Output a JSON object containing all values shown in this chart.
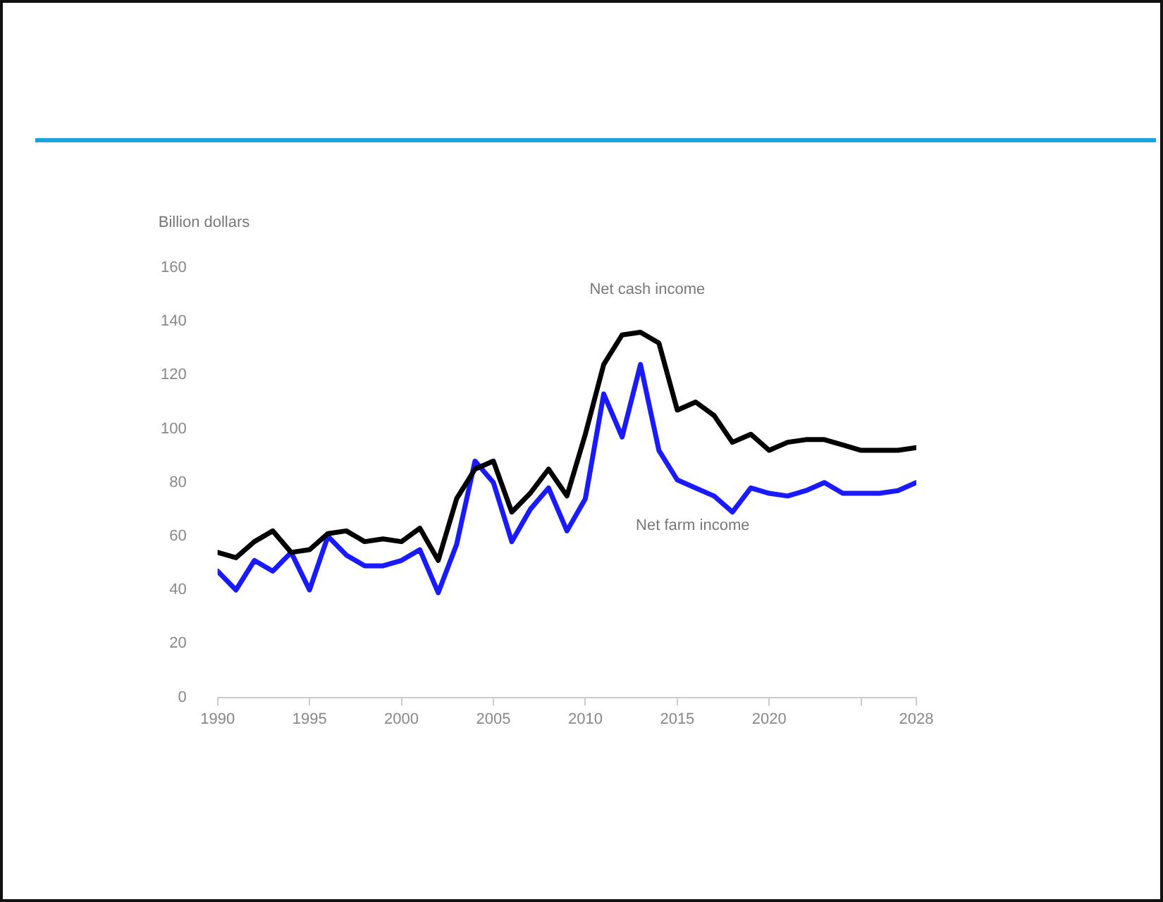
{
  "chart_data": {
    "type": "line",
    "ylabel": "Billion dollars",
    "x": [
      1990,
      1991,
      1992,
      1993,
      1994,
      1995,
      1996,
      1997,
      1998,
      1999,
      2000,
      2001,
      2002,
      2003,
      2004,
      2005,
      2006,
      2007,
      2008,
      2009,
      2010,
      2011,
      2012,
      2013,
      2014,
      2015,
      2016,
      2017,
      2018,
      2019,
      2020,
      2021,
      2022,
      2023,
      2024,
      2025,
      2026,
      2027,
      2028
    ],
    "series": [
      {
        "name": "Net cash income",
        "color": "#000000",
        "values": [
          54,
          52,
          58,
          62,
          54,
          55,
          61,
          62,
          58,
          59,
          58,
          63,
          51,
          74,
          85,
          88,
          69,
          76,
          85,
          75,
          98,
          124,
          135,
          136,
          132,
          107,
          110,
          105,
          95,
          98,
          92,
          95,
          96,
          96,
          94,
          92,
          92,
          92,
          93
        ]
      },
      {
        "name": "Net farm income",
        "color": "#1a1aff",
        "values": [
          47,
          40,
          51,
          47,
          54,
          40,
          60,
          53,
          49,
          49,
          51,
          55,
          39,
          57,
          88,
          80,
          58,
          70,
          78,
          62,
          74,
          113,
          97,
          124,
          92,
          81,
          78,
          75,
          69,
          78,
          76,
          75,
          77,
          80,
          76,
          76,
          76,
          77,
          80
        ]
      }
    ],
    "xlim": [
      1990,
      2028
    ],
    "xticks": [
      1990,
      1995,
      2000,
      2005,
      2010,
      2015,
      2020,
      {
        "value": 2025,
        "label": null
      },
      2028
    ],
    "ylim": [
      0,
      160
    ],
    "yticks": [
      0,
      20,
      40,
      60,
      80,
      100,
      120,
      140,
      160
    ],
    "grid": false,
    "legend": false,
    "marker": "none",
    "line_style": "solid"
  }
}
